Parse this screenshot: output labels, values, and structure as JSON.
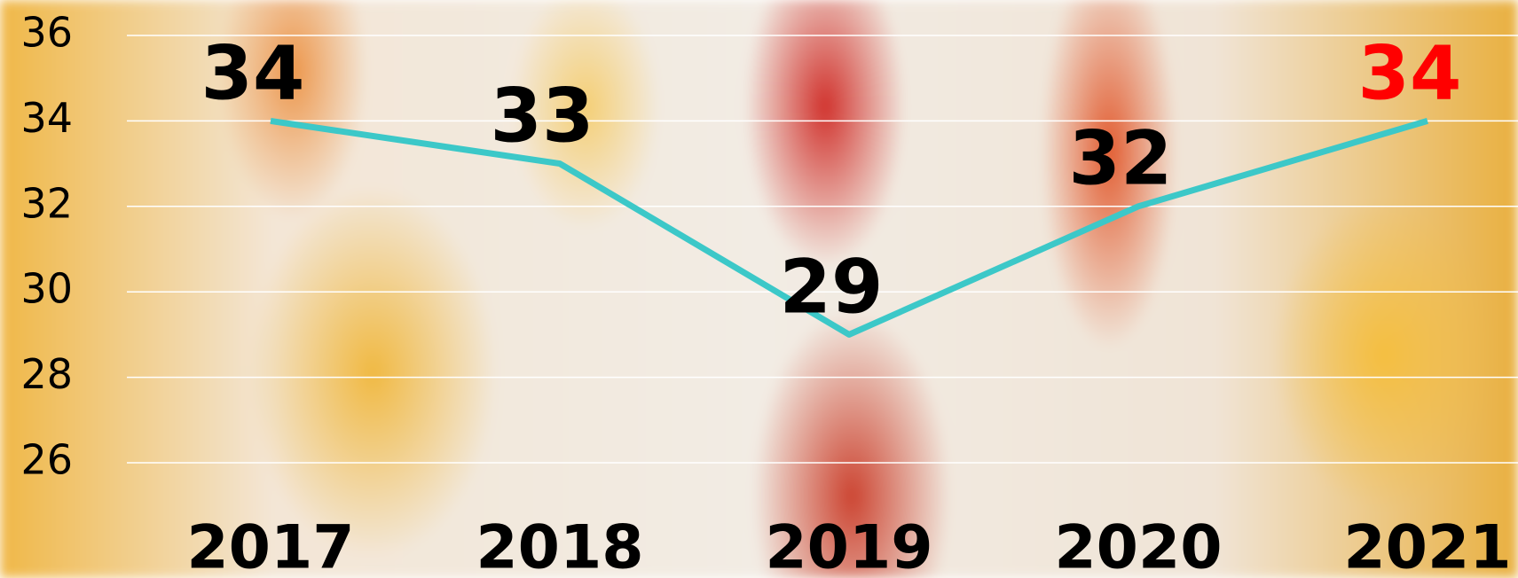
{
  "chart_data": {
    "type": "line",
    "categories": [
      "2017",
      "2018",
      "2019",
      "2020",
      "2021"
    ],
    "series": [
      {
        "color": "#3cc8c8",
        "values": [
          34,
          33,
          29,
          32,
          34
        ]
      }
    ],
    "value_label_colors": [
      "#000000",
      "#000000",
      "#000000",
      "#000000",
      "#ff0000"
    ],
    "ylim": [
      26,
      36
    ],
    "yticks": [
      26,
      28,
      30,
      32,
      34,
      36
    ],
    "grid": true
  }
}
